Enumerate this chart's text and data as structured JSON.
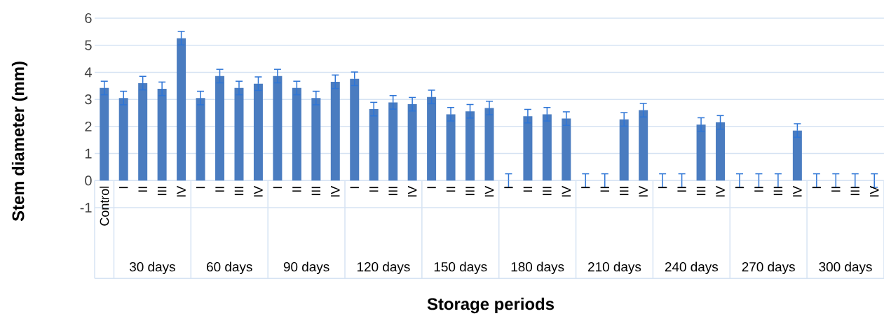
{
  "chart_data": {
    "type": "bar",
    "xlabel": "Storage periods",
    "ylabel": "Stem diameter  (mm)",
    "categories": [
      "Control",
      "I",
      "II",
      "III",
      "IV",
      "I",
      "II",
      "III",
      "IV",
      "I",
      "II",
      "III",
      "IV",
      "I",
      "II",
      "III",
      "IV",
      "I",
      "II",
      "III",
      "IV",
      "I",
      "II",
      "III",
      "IV",
      "I",
      "II",
      "III",
      "IV",
      "I",
      "II",
      "III",
      "IV",
      "I",
      "II",
      "III",
      "IV",
      "I",
      "II",
      "III",
      "IV"
    ],
    "values": [
      3.42,
      3.05,
      3.6,
      3.39,
      5.26,
      3.05,
      3.86,
      3.42,
      3.58,
      3.86,
      3.42,
      3.05,
      3.65,
      3.76,
      2.64,
      2.89,
      2.82,
      3.09,
      2.45,
      2.56,
      2.68,
      0,
      2.38,
      2.45,
      2.29,
      0,
      0,
      2.26,
      2.6,
      0,
      0,
      2.07,
      2.15,
      0,
      0,
      0,
      1.85,
      0,
      0,
      0,
      0
    ],
    "errors": [
      0.25,
      0.25,
      0.25,
      0.25,
      0.25,
      0.25,
      0.25,
      0.25,
      0.25,
      0.25,
      0.25,
      0.25,
      0.25,
      0.25,
      0.25,
      0.25,
      0.25,
      0.25,
      0.25,
      0.25,
      0.25,
      0.25,
      0.25,
      0.25,
      0.25,
      0.25,
      0.25,
      0.25,
      0.25,
      0.25,
      0.25,
      0.25,
      0.25,
      0.25,
      0.25,
      0.25,
      0.25,
      0.25,
      0.25,
      0.25,
      0.25
    ],
    "color": "#4a7cc0",
    "annotations": [
      "30 days",
      "60 days",
      "90 days",
      "120 days",
      "150 days",
      "180 days",
      "210 days",
      "240 days",
      "270 days",
      "300 days"
    ],
    "ylim": [
      -1,
      6
    ],
    "yticks": [
      -1,
      0,
      1,
      2,
      3,
      4,
      5,
      6
    ],
    "grid": "y"
  }
}
